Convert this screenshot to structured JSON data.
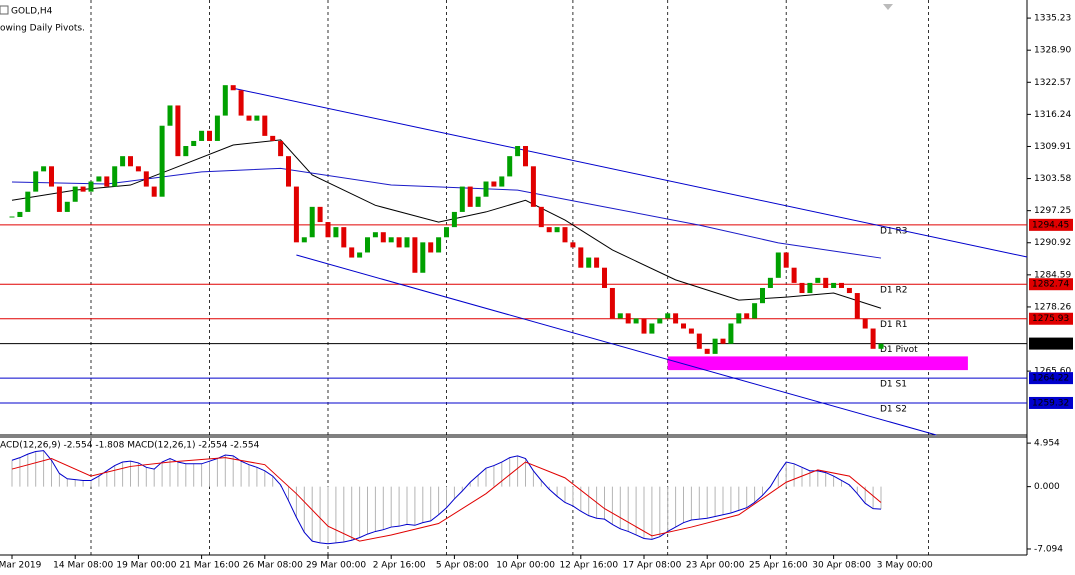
{
  "chart_data": {
    "type": "candlestick",
    "title": "GOLD,H4",
    "subtitle": "owing Daily Pivots.",
    "categories": [
      "Mar 2019",
      null,
      null,
      null,
      null,
      null,
      null,
      null,
      "14 Mar 08:00",
      null,
      null,
      null,
      null,
      null,
      null,
      null,
      "19 Mar 00:00",
      null,
      null,
      null,
      null,
      null,
      null,
      null,
      "21 Mar 16:00",
      null,
      null,
      null,
      null,
      null,
      null,
      null,
      "26 Mar 08:00",
      null,
      null,
      null,
      null,
      null,
      null,
      null,
      "29 Mar 00:00",
      null,
      null,
      null,
      null,
      null,
      null,
      null,
      "2 Apr 16:00",
      null,
      null,
      null,
      null,
      null,
      null,
      null,
      "5 Apr 08:00",
      null,
      null,
      null,
      null,
      null,
      null,
      null,
      "10 Apr 00:00",
      null,
      null,
      null,
      null,
      null,
      null,
      null,
      "12 Apr 16:00",
      null,
      null,
      null,
      null,
      null,
      null,
      null,
      "17 Apr 08:00",
      null,
      null,
      null,
      null,
      null,
      null,
      null,
      "23 Apr 00:00",
      null,
      null,
      null,
      null,
      null,
      null,
      null,
      "25 Apr 16:00",
      null,
      null,
      null,
      null,
      null,
      null,
      null,
      "30 Apr 08:00",
      null,
      null,
      null,
      null,
      null,
      null,
      null,
      "3 May 00:00"
    ],
    "close": [
      1296,
      1297,
      1301,
      1305,
      1306,
      1302,
      1297,
      1299,
      1302,
      1301,
      1303,
      1304,
      1302,
      1306,
      1308,
      1306,
      1305,
      1302,
      1300,
      1314,
      1318,
      1308,
      1310,
      1311,
      1313,
      1311,
      1316,
      1322,
      1321,
      1316,
      1315,
      1316,
      1312,
      1311,
      1308,
      1302,
      1291,
      1292,
      1298,
      1295,
      1292,
      1294,
      1290,
      1288,
      1289,
      1292,
      1293,
      1291,
      1292,
      1290,
      1292,
      1285,
      1291,
      1289,
      1292,
      1294,
      1297,
      1302,
      1298,
      1300,
      1303,
      1302,
      1304,
      1308,
      1310,
      1306,
      1298,
      1294,
      1293,
      1294,
      1291,
      1290,
      1286,
      1288,
      1286,
      1282,
      1276,
      1277,
      1275,
      1276,
      1273,
      1275,
      1276,
      1277,
      1275,
      1274,
      1273,
      1270,
      1269,
      1272,
      1271,
      1275,
      1277,
      1276,
      1279,
      1282,
      1284,
      1289,
      1286,
      1283,
      1281,
      1283,
      1284,
      1282,
      1283,
      1282,
      1281,
      1276,
      1274,
      1270,
      1271,
      null,
      null
    ],
    "up_color": "#00a000",
    "down_color": "#e00000",
    "ylim": [
      1253.0,
      1338.8
    ],
    "yticks": [
      1335.23,
      {
        "value": 1328.9,
        "label": "1328.90"
      },
      1322.57,
      1316.24,
      1309.91,
      1303.58,
      1297.25,
      1290.92,
      1284.59,
      1278.26,
      {
        "value": 1265.6,
        "label": "1265.60"
      }
    ],
    "xgrid": [
      10,
      25,
      40,
      55,
      71,
      83,
      98,
      116
    ],
    "lines": [
      {
        "color": "#000000",
        "x": [
          0,
          8,
          15,
          20,
          28,
          34,
          38,
          46,
          54,
          60,
          65,
          70,
          76,
          84,
          92,
          98,
          104,
          110
        ],
        "values": [
          1299.3,
          1301.3,
          1302.3,
          1305.3,
          1310.2,
          1311.2,
          1304.3,
          1298.3,
          1295.0,
          1297.0,
          1299.3,
          1295.4,
          1289.5,
          1283.6,
          1279.6,
          1280.2,
          1281.0,
          1278.0
        ]
      },
      {
        "color": "#1a1ac8",
        "x": [
          0,
          12,
          24,
          34,
          48,
          64,
          74,
          87,
          97,
          110
        ],
        "values": [
          1302.9,
          1302.5,
          1304.9,
          1305.6,
          1302.3,
          1301.3,
          1298.3,
          1294.4,
          1290.9,
          1287.9
        ]
      },
      {
        "color": "#0000cc",
        "x": [
          28,
          128.5
        ],
        "values": [
          1321.4,
          1288.1
        ]
      },
      {
        "color": "#0000cc",
        "x": [
          36,
          117
        ],
        "values": [
          1288.5,
          1253.0
        ]
      }
    ],
    "zone": {
      "color": "#ff00ff",
      "x": [
        83,
        121
      ],
      "y": [
        1265.8,
        1268.5
      ]
    },
    "pivots": [
      {
        "name": "D1 R3",
        "value": 1294.45,
        "color": "#e00000"
      },
      {
        "name": "D1 R2",
        "value": 1282.74,
        "color": "#e00000"
      },
      {
        "name": "D1 R1",
        "value": 1275.93,
        "color": "#e00000"
      },
      {
        "name": "D1 Pivot",
        "value": 1271.03,
        "color": "#000000"
      },
      {
        "name": "D1 S1",
        "value": 1264.22,
        "color": "#0000cc"
      },
      {
        "name": "D1 S2",
        "value": 1259.32,
        "color": "#0000cc"
      }
    ],
    "macd": {
      "label": "ACD(12,26,9) -2.554 -1.808 MACD(12,26,1) -2.554 -2.554",
      "ylim": [
        -7.78,
        5.65
      ],
      "yticks": [
        4.954,
        {
          "value": 0,
          "label": "0.000"
        },
        -7.094
      ],
      "hist_color": "#b4b4b4",
      "line_color": "#0000cc",
      "signal_color": "#e00000",
      "values": [
        3.0,
        3.3,
        3.7,
        4.0,
        4.1,
        3.0,
        1.5,
        0.9,
        0.8,
        0.7,
        0.7,
        1.2,
        1.8,
        2.4,
        2.8,
        2.9,
        2.7,
        2.2,
        2.0,
        2.8,
        3.2,
        2.8,
        2.6,
        2.6,
        2.6,
        2.9,
        3.2,
        3.6,
        3.5,
        2.9,
        2.5,
        2.2,
        1.8,
        1.2,
        0.2,
        -1.6,
        -3.5,
        -5.2,
        -6.2,
        -6.4,
        -6.5,
        -6.4,
        -6.3,
        -6.1,
        -5.8,
        -5.4,
        -5.1,
        -4.9,
        -4.6,
        -4.5,
        -4.3,
        -4.4,
        -4.1,
        -3.9,
        -3.2,
        -2.4,
        -1.4,
        -0.5,
        0.5,
        1.3,
        2.1,
        2.4,
        2.8,
        3.3,
        3.5,
        3.2,
        1.8,
        0.7,
        -0.3,
        -1.1,
        -1.8,
        -2.2,
        -2.8,
        -3.3,
        -3.6,
        -3.7,
        -4.3,
        -4.8,
        -5.1,
        -5.5,
        -5.9,
        -6.0,
        -5.7,
        -5.1,
        -4.6,
        -4.1,
        -3.8,
        -3.7,
        -3.6,
        -3.4,
        -3.2,
        -3.0,
        -2.7,
        -2.4,
        -1.8,
        -1.0,
        0.0,
        1.5,
        2.8,
        2.6,
        2.2,
        1.8,
        1.8,
        1.6,
        1.2,
        0.7,
        0.2,
        -0.8,
        -1.9,
        -2.5,
        -2.554,
        null,
        null
      ],
      "signal_x": [
        0,
        5,
        10,
        15,
        20,
        27,
        32,
        36,
        40,
        44,
        48,
        54,
        60,
        65,
        70,
        75,
        81,
        86,
        92,
        98,
        102,
        106,
        110
      ],
      "signal": [
        2.0,
        3.2,
        1.2,
        2.3,
        2.8,
        3.3,
        2.5,
        -0.8,
        -4.5,
        -6.2,
        -5.5,
        -4.2,
        -0.8,
        2.8,
        1.0,
        -2.5,
        -5.6,
        -4.6,
        -3.2,
        0.5,
        1.9,
        1.2,
        -1.808
      ]
    }
  }
}
